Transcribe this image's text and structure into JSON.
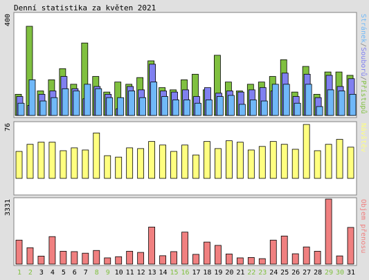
{
  "title": "Denní statistika za květen 2021",
  "colors": {
    "background": "#e0e0e0",
    "border": "#808080",
    "hits": "#80c040",
    "files": "#8080f0",
    "pages": "#70b8f8",
    "visits": "#ffff80",
    "volume": "#f08080",
    "weekend": "#80c040",
    "weekday": "#000000"
  },
  "chart_data": {
    "type": "bar",
    "categories": [
      "1",
      "2",
      "3",
      "4",
      "5",
      "6",
      "7",
      "8",
      "9",
      "10",
      "11",
      "12",
      "13",
      "14",
      "15",
      "16",
      "17",
      "18",
      "19",
      "20",
      "21",
      "22",
      "23",
      "24",
      "25",
      "26",
      "27",
      "28",
      "29",
      "30",
      "31"
    ],
    "weekend_days": [
      "1",
      "2",
      "8",
      "9",
      "15",
      "16",
      "22",
      "23",
      "29",
      "30"
    ],
    "panels": [
      {
        "name": "top",
        "ymax_label": "400",
        "ylim": [
          0,
          400
        ],
        "legend": [
          "Stránek",
          "/",
          "Souborů",
          "/",
          "Přístupů"
        ],
        "legend_colors": [
          "pages",
          "border",
          "files",
          "border",
          "hits"
        ],
        "series": [
          {
            "name": "Přístupů",
            "color": "hits",
            "values": [
              95,
              400,
              110,
              160,
              210,
              140,
              325,
              175,
              105,
              150,
              140,
              170,
              245,
              125,
              115,
              160,
              185,
              115,
              270,
              150,
              110,
              140,
              150,
              175,
              250,
              105,
              220,
              95,
              195,
              195,
              180
            ]
          },
          {
            "name": "Souborů",
            "color": "files",
            "values": [
              85,
              45,
              95,
              110,
              175,
              120,
              75,
              130,
              95,
              30,
              130,
              115,
              230,
              110,
              105,
              115,
              85,
              125,
              100,
              110,
              105,
              115,
              125,
              110,
              190,
              85,
              185,
              80,
              180,
              130,
              165
            ]
          },
          {
            "name": "Stránek",
            "color": "pages",
            "values": [
              55,
              160,
              65,
              80,
              120,
              110,
              140,
              120,
              80,
              80,
              110,
              80,
              150,
              85,
              70,
              70,
              55,
              70,
              85,
              90,
              50,
              70,
              65,
              140,
              140,
              55,
              140,
              40,
              115,
              110,
              95
            ]
          }
        ]
      },
      {
        "name": "middle",
        "ymax_label": "76",
        "ylim": [
          0,
          76
        ],
        "legend": [
          "Návštěv"
        ],
        "legend_colors": [
          "visits"
        ],
        "series": [
          {
            "name": "Návštěv",
            "color": "visits",
            "values": [
              38,
              48,
              51,
              51,
              39,
              43,
              40,
              64,
              32,
              30,
              43,
              42,
              52,
              47,
              38,
              47,
              33,
              52,
              42,
              53,
              51,
              40,
              45,
              52,
              48,
              41,
              76,
              39,
              48,
              55,
              44
            ]
          }
        ]
      },
      {
        "name": "bottom",
        "ymax_label": "3331",
        "ylim": [
          0,
          3331
        ],
        "legend": [
          "Objem přenosu"
        ],
        "legend_colors": [
          "volume"
        ],
        "series": [
          {
            "name": "Objem přenosu",
            "color": "volume",
            "values": [
              1230,
              840,
              410,
              1410,
              660,
              640,
              560,
              700,
              320,
              380,
              660,
              600,
              1900,
              430,
              640,
              1640,
              500,
              1130,
              960,
              520,
              320,
              340,
              280,
              1230,
              1440,
              530,
              880,
              660,
              3331,
              420,
              1880
            ]
          }
        ]
      }
    ]
  }
}
